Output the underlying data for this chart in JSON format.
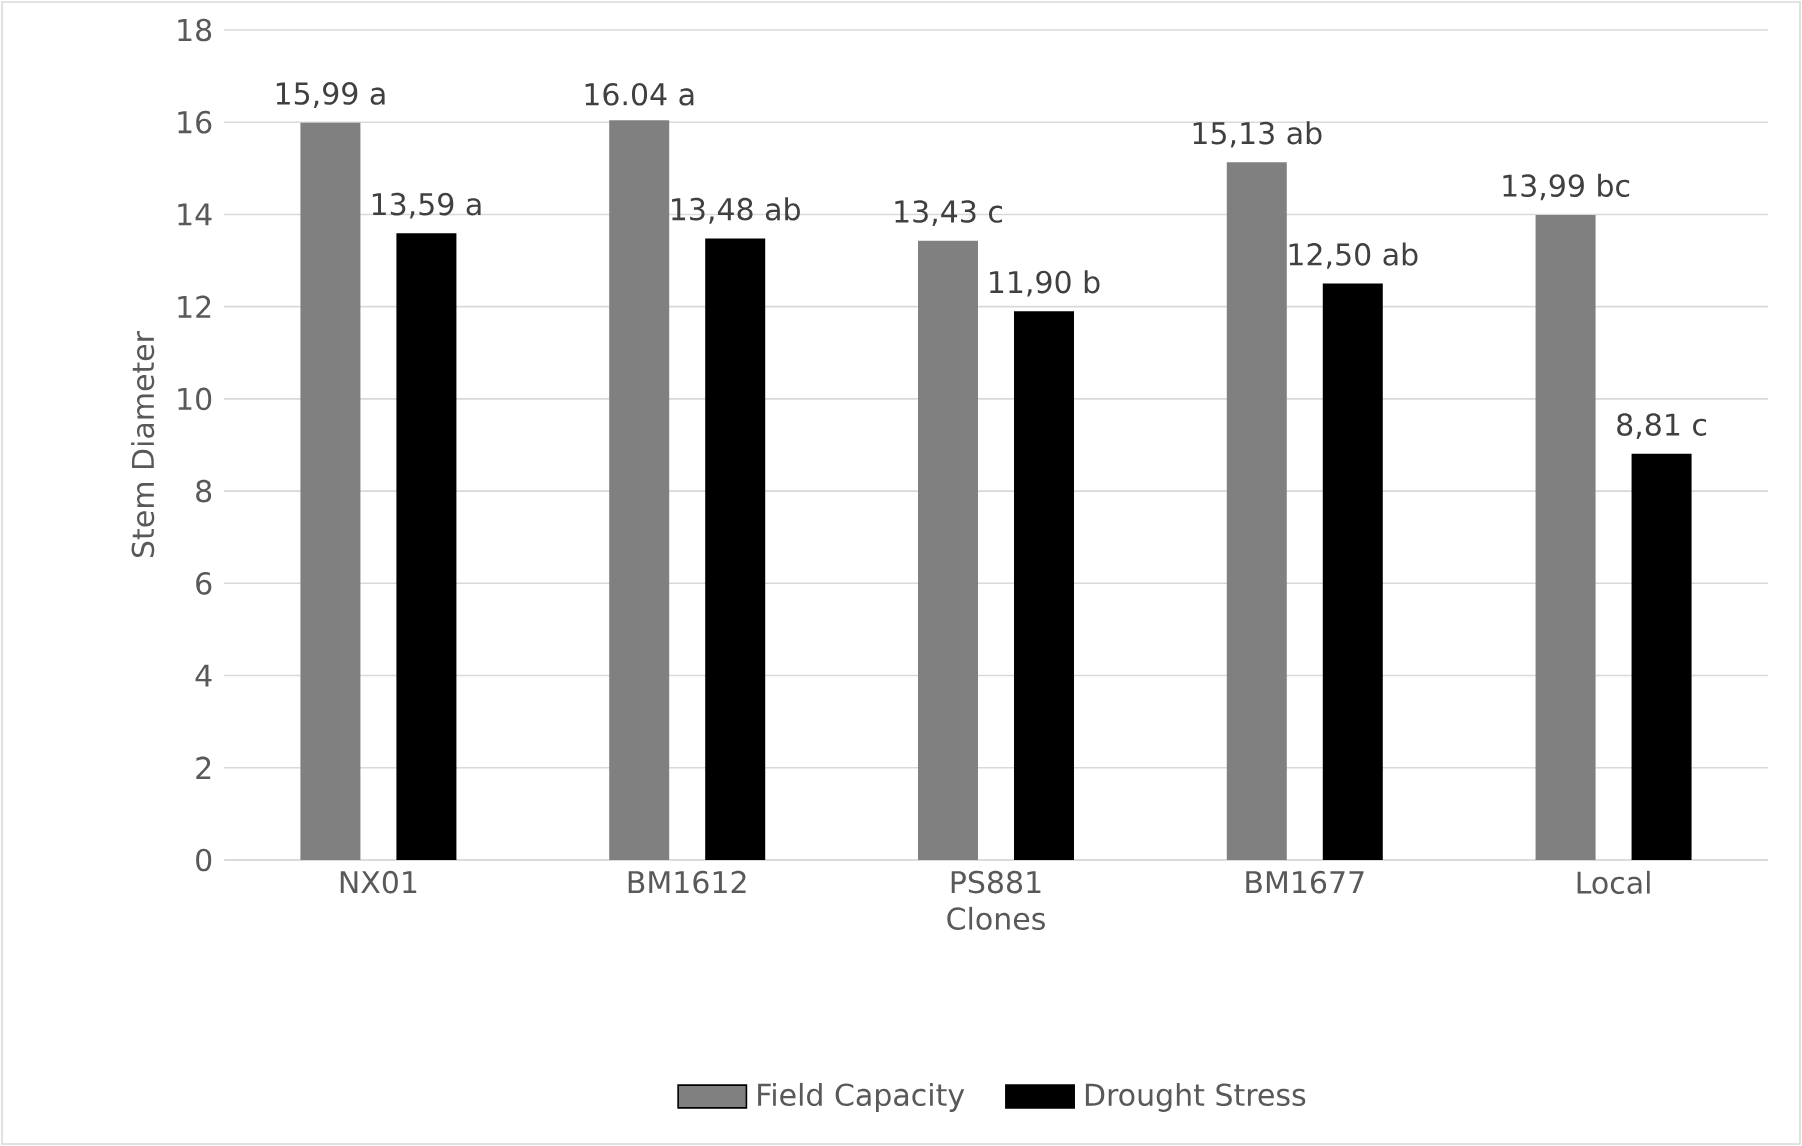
{
  "chart_data": {
    "type": "bar",
    "xlabel": "Clones",
    "ylabel": "Stem Diameter",
    "categories": [
      "NX01",
      "BM1612",
      "PS881",
      "BM1677",
      "Local"
    ],
    "series": [
      {
        "name": "Field Capacity",
        "color": "#808080",
        "values": [
          15.99,
          16.04,
          13.43,
          15.13,
          13.99
        ],
        "value_labels": [
          "15,99 a",
          "16.04 a",
          "13,43 c",
          "15,13 ab",
          "13,99 bc"
        ]
      },
      {
        "name": "Drought Stress",
        "color": "#000000",
        "values": [
          13.59,
          13.48,
          11.9,
          12.5,
          8.81
        ],
        "value_labels": [
          "13,59 a",
          "13,48 ab",
          "11,90 b",
          "12,50 ab",
          "8,81 c"
        ]
      }
    ],
    "ylim": [
      0,
      18
    ],
    "yticks": [
      0,
      2,
      4,
      6,
      8,
      10,
      12,
      14,
      16,
      18
    ],
    "grid": "y",
    "legend": "bottom"
  }
}
